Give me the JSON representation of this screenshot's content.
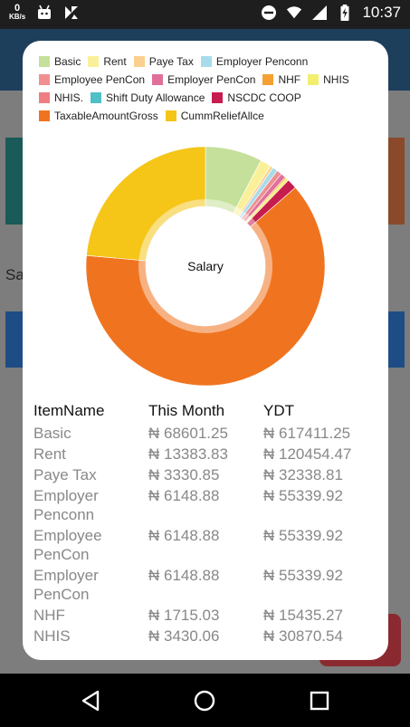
{
  "status_bar": {
    "speed_value": "0",
    "speed_unit": "KB/s",
    "time": "10:37"
  },
  "app_background": {
    "partial_text": "Sa"
  },
  "dialog": {
    "chart_data": {
      "type": "pie",
      "donut": true,
      "center_label": "Salary",
      "legend_placement": "top",
      "categories": [
        "Basic",
        "Rent",
        "Paye Tax",
        "Employer Penconn",
        "Employee PenCon",
        "Employer PenCon",
        "NHF",
        "NHIS",
        "NHIS.",
        "Shift Duty Allowance",
        "NSCDC COOP",
        "TaxableAmountGross",
        "CummReliefAllce"
      ],
      "values": [
        68601.25,
        13383.83,
        3330.85,
        6148.88,
        6148.88,
        6148.88,
        1715.03,
        3430.06,
        0,
        0,
        12000,
        560000,
        210000
      ],
      "colors": [
        "#c5e09a",
        "#fbf09a",
        "#fbd08f",
        "#a8dcea",
        "#f08f8f",
        "#e0709a",
        "#f6a031",
        "#f2ef6f",
        "#ef7d82",
        "#4fc0c8",
        "#c61c4e",
        "#f07420",
        "#f5c518"
      ]
    },
    "table": {
      "headers": [
        "ItemName",
        "This Month",
        "YDT"
      ],
      "rows": [
        {
          "name": "Basic",
          "month": "₦ 68601.25",
          "ydt": "₦ 617411.25"
        },
        {
          "name": "Rent",
          "month": "₦ 13383.83",
          "ydt": "₦ 120454.47"
        },
        {
          "name": "Paye Tax",
          "month": "₦ 3330.85",
          "ydt": "₦ 32338.81"
        },
        {
          "name": "Employer Penconn",
          "month": "₦ 6148.88",
          "ydt": "₦ 55339.92"
        },
        {
          "name": "Employee PenCon",
          "month": "₦ 6148.88",
          "ydt": "₦ 55339.92"
        },
        {
          "name": "Employer PenCon",
          "month": "₦ 6148.88",
          "ydt": "₦ 55339.92"
        },
        {
          "name": "NHF",
          "month": "₦ 1715.03",
          "ydt": "₦ 15435.27"
        },
        {
          "name": "NHIS",
          "month": "₦ 3430.06",
          "ydt": "₦ 30870.54"
        }
      ]
    }
  }
}
